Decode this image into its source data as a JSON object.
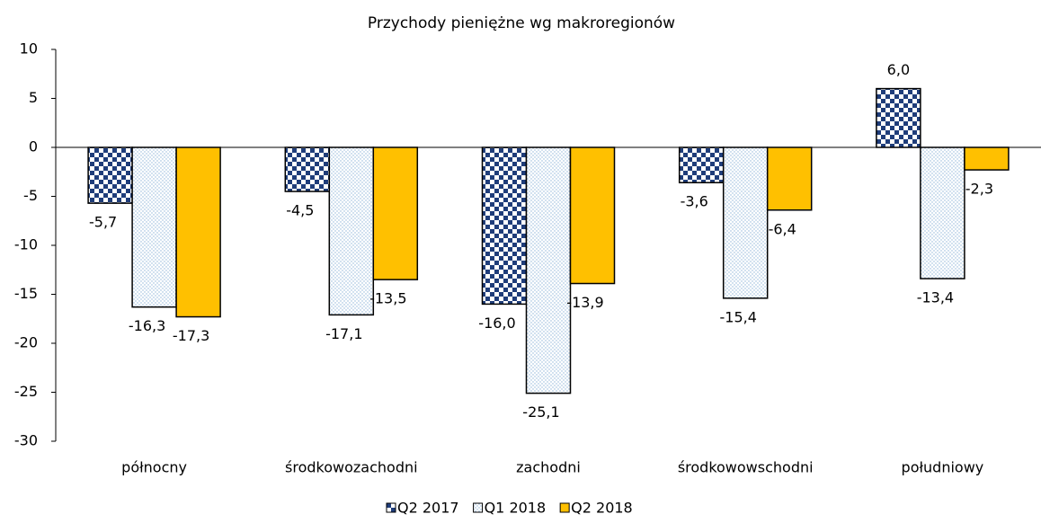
{
  "chart_data": {
    "type": "bar",
    "title": "Przychody pieniężne wg makroregionów",
    "categories": [
      "północny",
      "środkowozachodni",
      "zachodni",
      "środkowowschodni",
      "południowy"
    ],
    "series": [
      {
        "name": "Q2 2017",
        "color": "#1f3d7a",
        "pattern": "checker",
        "values": [
          -5.7,
          -4.5,
          -16.0,
          -3.6,
          6.0
        ],
        "value_labels": [
          "-5,7",
          "-4,5",
          "-16,0",
          "-3,6",
          "6,0"
        ]
      },
      {
        "name": "Q1 2018",
        "color": "#8fb4d9",
        "pattern": "dots",
        "values": [
          -16.3,
          -17.1,
          -25.1,
          -15.4,
          -13.4
        ],
        "value_labels": [
          "-16,3",
          "-17,1",
          "-25,1",
          "-15,4",
          "-13,4"
        ]
      },
      {
        "name": "Q2 2018",
        "color": "#ffc000",
        "pattern": "solid",
        "values": [
          -17.3,
          -13.5,
          -13.9,
          -6.4,
          -2.3
        ],
        "value_labels": [
          "-17,3",
          "-13,5",
          "-13,9",
          "-6,4",
          "-2,3"
        ]
      }
    ],
    "ylim": [
      -30,
      10
    ],
    "yticks": [
      -30,
      -25,
      -20,
      -15,
      -10,
      -5,
      0,
      5,
      10
    ],
    "grid": false,
    "legend": "bottom"
  }
}
